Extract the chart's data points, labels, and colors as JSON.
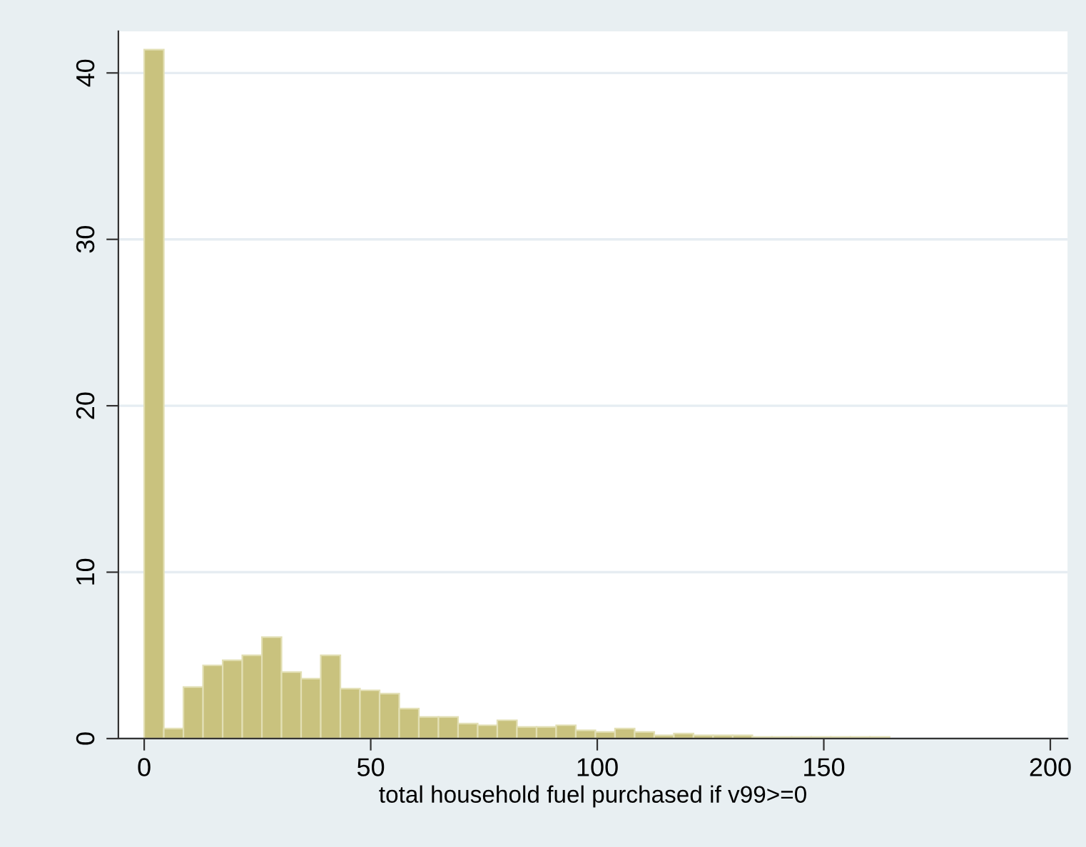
{
  "chart_data": {
    "type": "histogram",
    "xlabel": "total household fuel purchased if v99>=0",
    "bins": [
      0,
      4.33,
      8.66,
      12.99,
      17.32,
      21.65,
      25.98,
      30.31,
      34.64,
      38.97,
      43.3,
      47.63,
      51.96,
      56.29,
      60.62,
      64.95,
      69.28,
      73.61,
      77.94,
      82.27,
      86.6,
      90.93,
      95.26,
      99.59,
      103.92,
      108.25,
      112.58,
      116.91,
      121.24,
      125.57,
      129.9,
      134.23,
      138.56,
      142.89,
      147.22,
      151.55,
      155.88,
      160.21,
      164.54,
      168.87,
      173.2,
      177.53,
      181.86,
      186.19,
      190.52,
      194.85,
      199.18
    ],
    "values": [
      41.4,
      0.6,
      3.1,
      4.4,
      4.7,
      5.0,
      6.1,
      4.0,
      3.6,
      5.0,
      3.0,
      2.9,
      2.7,
      1.8,
      1.3,
      1.3,
      0.9,
      0.8,
      1.1,
      0.7,
      0.7,
      0.8,
      0.5,
      0.4,
      0.6,
      0.4,
      0.2,
      0.3,
      0.2,
      0.2,
      0.2,
      0.1,
      0.1,
      0.1,
      0.1,
      0.1,
      0.1,
      0.1,
      0,
      0,
      0,
      0,
      0,
      0,
      0,
      0
    ],
    "color": "#c9c27e",
    "xlim": [
      -5.7,
      203.8
    ],
    "ylim": [
      0,
      42.5
    ],
    "xticks": [
      0,
      50,
      100,
      150,
      200
    ],
    "yticks": [
      0,
      10,
      20,
      30,
      40
    ],
    "grid": "y"
  }
}
